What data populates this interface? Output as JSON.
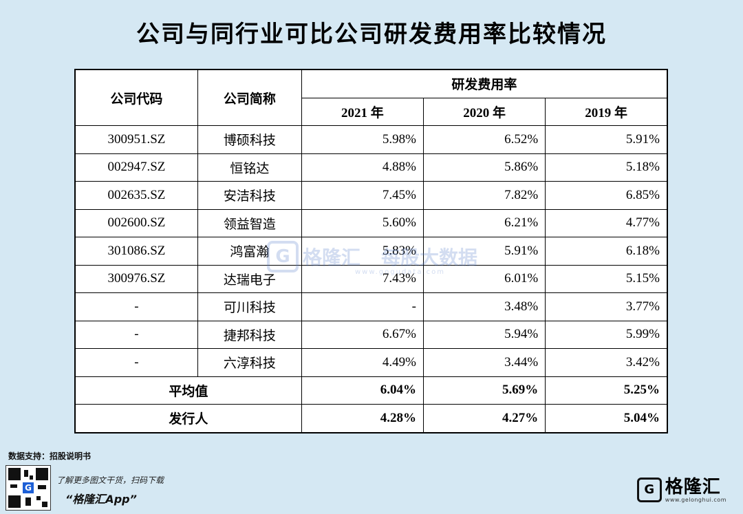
{
  "title": "公司与同行业可比公司研发费用率比较情况",
  "table": {
    "header": {
      "code": "公司代码",
      "name": "公司简称",
      "group": "研发费用率",
      "years": [
        "2021 年",
        "2020 年",
        "2019 年"
      ]
    },
    "rows": [
      {
        "code": "300951.SZ",
        "name": "博硕科技",
        "v2021": "5.98%",
        "v2020": "6.52%",
        "v2019": "5.91%"
      },
      {
        "code": "002947.SZ",
        "name": "恒铭达",
        "v2021": "4.88%",
        "v2020": "5.86%",
        "v2019": "5.18%"
      },
      {
        "code": "002635.SZ",
        "name": "安洁科技",
        "v2021": "7.45%",
        "v2020": "7.82%",
        "v2019": "6.85%"
      },
      {
        "code": "002600.SZ",
        "name": "领益智造",
        "v2021": "5.60%",
        "v2020": "6.21%",
        "v2019": "4.77%"
      },
      {
        "code": "301086.SZ",
        "name": "鸿富瀚",
        "v2021": "5.83%",
        "v2020": "5.91%",
        "v2019": "6.18%"
      },
      {
        "code": "300976.SZ",
        "name": "达瑞电子",
        "v2021": "7.43%",
        "v2020": "6.01%",
        "v2019": "5.15%"
      },
      {
        "code": "-",
        "name": "可川科技",
        "v2021": "-",
        "v2020": "3.48%",
        "v2019": "3.77%"
      },
      {
        "code": "-",
        "name": "捷邦科技",
        "v2021": "6.67%",
        "v2020": "5.94%",
        "v2019": "5.99%"
      },
      {
        "code": "-",
        "name": "六淳科技",
        "v2021": "4.49%",
        "v2020": "3.44%",
        "v2019": "3.42%"
      }
    ],
    "summary": [
      {
        "label": "平均值",
        "v2021": "6.04%",
        "v2020": "5.69%",
        "v2019": "5.25%"
      },
      {
        "label": "发行人",
        "v2021": "4.28%",
        "v2020": "4.27%",
        "v2019": "5.04%"
      }
    ]
  },
  "footer": {
    "source": "数据支持：招股说明书",
    "tagline": "了解更多图文干货，扫码下载",
    "app_name": "“格隆汇App”",
    "brand": "格隆汇",
    "brand_url": "www.gelonghui.com",
    "brand_icon_letter": "G"
  },
  "watermark": {
    "brand": "格隆汇",
    "product": "每股大数据",
    "url": "www.gogudata.com",
    "icon_letter": "G"
  },
  "colors": {
    "background": "#d5e8f3",
    "table_bg": "#ffffff",
    "border": "#000000"
  }
}
